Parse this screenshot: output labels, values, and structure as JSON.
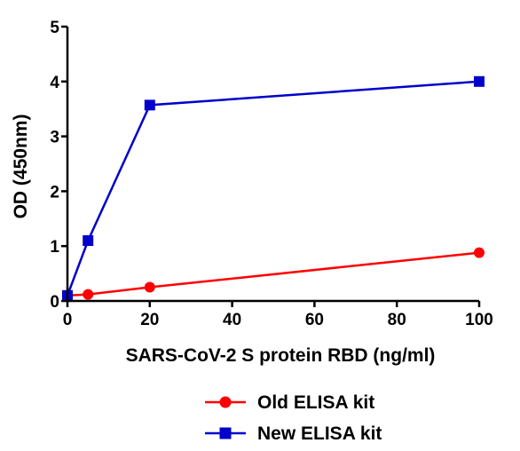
{
  "chart_data": {
    "type": "line",
    "xlabel": "SARS-CoV-2 S protein RBD (ng/ml)",
    "ylabel": "OD (450nm)",
    "xlim": [
      0,
      100
    ],
    "ylim": [
      0,
      5
    ],
    "x_ticks": [
      0,
      20,
      40,
      60,
      80,
      100
    ],
    "y_ticks": [
      0,
      1,
      2,
      3,
      4,
      5
    ],
    "grid": false,
    "legend_position": "bottom-center",
    "series": [
      {
        "name": "Old ELISA kit",
        "color": "#ff0000",
        "marker": "circle",
        "x": [
          0,
          5,
          20,
          100
        ],
        "y": [
          0.1,
          0.12,
          0.25,
          0.88
        ]
      },
      {
        "name": "New ELISA kit",
        "color": "#0000cc",
        "marker": "square",
        "x": [
          0,
          5,
          20,
          100
        ],
        "y": [
          0.1,
          1.1,
          3.57,
          4.0
        ]
      }
    ]
  }
}
